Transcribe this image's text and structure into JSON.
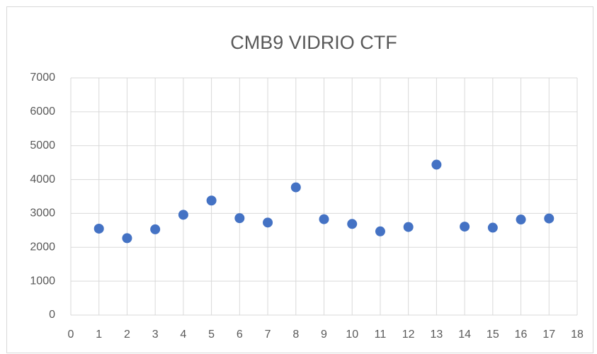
{
  "chart_data": {
    "type": "scatter",
    "title": "CMB9 VIDRIO CTF",
    "x": [
      1,
      2,
      3,
      4,
      5,
      6,
      7,
      8,
      9,
      10,
      11,
      12,
      13,
      14,
      15,
      16,
      17
    ],
    "values": [
      2550,
      2270,
      2530,
      2960,
      3380,
      2860,
      2730,
      3770,
      2830,
      2690,
      2470,
      2600,
      4440,
      2610,
      2580,
      2820,
      2850
    ],
    "color": "#4472c4",
    "xlim": [
      0,
      18
    ],
    "xticks": [
      0,
      1,
      2,
      3,
      4,
      5,
      6,
      7,
      8,
      9,
      10,
      11,
      12,
      13,
      14,
      15,
      16,
      17,
      18
    ],
    "ylim": [
      0,
      7000
    ],
    "yticks": [
      0,
      1000,
      2000,
      3000,
      4000,
      5000,
      6000,
      7000
    ],
    "grid": true
  }
}
